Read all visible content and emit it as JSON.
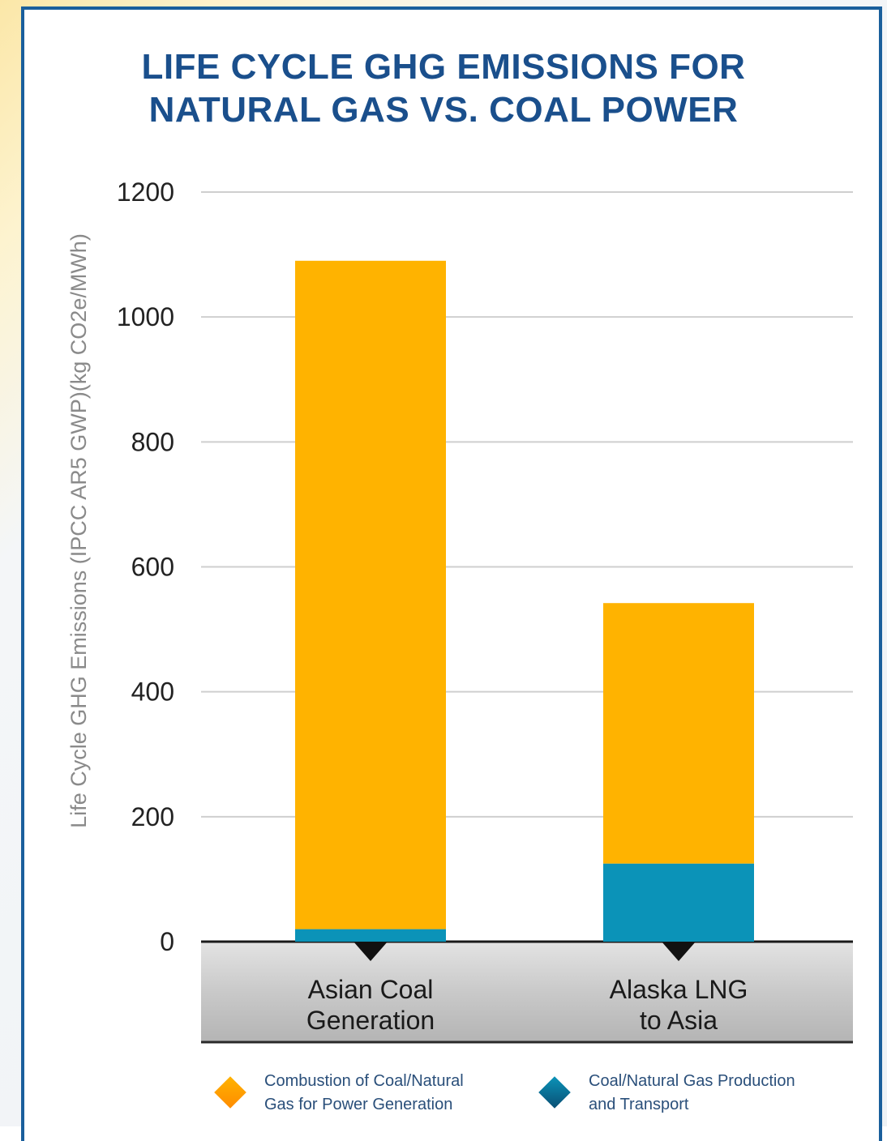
{
  "chart_data": {
    "type": "bar",
    "stacked": true,
    "title": [
      "LIFE CYCLE GHG EMISSIONS FOR",
      "NATURAL GAS VS. COAL POWER"
    ],
    "ylabel": "Life Cycle GHG Emissions (IPCC AR5 GWP)(kg CO2e/MWh)",
    "ylim": [
      0,
      1200
    ],
    "yticks": [
      0,
      200,
      400,
      600,
      800,
      1000,
      1200
    ],
    "grid": true,
    "categories": [
      [
        "Asian Coal",
        "Generation"
      ],
      [
        "Alaska LNG",
        "to Asia"
      ]
    ],
    "series": [
      {
        "name": "Coal/Natural Gas Production and Transport",
        "name_lines": [
          "Coal/Natural Gas Production",
          "and Transport"
        ],
        "color": "#0b93b8",
        "values": [
          20,
          125
        ]
      },
      {
        "name": "Combustion of Coal/Natural Gas for Power Generation",
        "name_lines": [
          "Combustion of Coal/Natural",
          "Gas for Power Generation"
        ],
        "color": "#ffb300",
        "values": [
          1070,
          417
        ]
      }
    ],
    "legend_position": "bottom"
  }
}
